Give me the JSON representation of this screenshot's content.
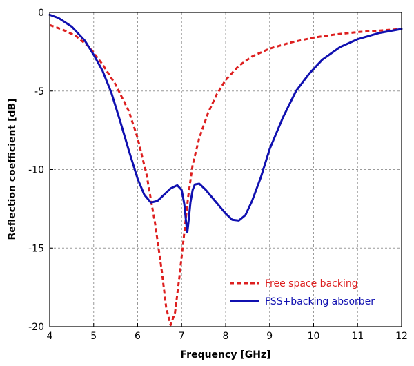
{
  "chart_data": {
    "type": "line",
    "title": "",
    "xlabel": "Frequency [GHz]",
    "ylabel": "Reflection coefficient [dB]",
    "xlim": [
      4,
      12
    ],
    "ylim": [
      -20,
      0
    ],
    "xticks": [
      4,
      5,
      6,
      7,
      8,
      9,
      10,
      11,
      12
    ],
    "yticks": [
      0,
      -5,
      -10,
      -15,
      -20
    ],
    "grid": true,
    "legend_position": "bottom-right",
    "series": [
      {
        "name": "Free space backing",
        "color": "#dd1f1f",
        "style": "dashed",
        "x": [
          4.0,
          4.3,
          4.6,
          4.9,
          5.2,
          5.5,
          5.8,
          6.0,
          6.2,
          6.4,
          6.55,
          6.65,
          6.75,
          6.85,
          6.95,
          7.05,
          7.15,
          7.25,
          7.4,
          7.6,
          7.8,
          8.0,
          8.3,
          8.6,
          9.0,
          9.5,
          10.0,
          10.5,
          11.0,
          11.5,
          12.0
        ],
        "y": [
          -0.8,
          -1.1,
          -1.5,
          -2.2,
          -3.3,
          -4.6,
          -6.3,
          -8.0,
          -10.3,
          -13.5,
          -16.5,
          -18.8,
          -19.9,
          -19.1,
          -16.8,
          -14.3,
          -11.7,
          -9.7,
          -8.0,
          -6.4,
          -5.2,
          -4.3,
          -3.4,
          -2.8,
          -2.3,
          -1.9,
          -1.6,
          -1.4,
          -1.25,
          -1.15,
          -1.05
        ]
      },
      {
        "name": "FSS+backing absorber",
        "color": "#1010b0",
        "style": "solid",
        "x": [
          4.0,
          4.2,
          4.5,
          4.8,
          5.0,
          5.2,
          5.4,
          5.6,
          5.8,
          6.0,
          6.15,
          6.3,
          6.45,
          6.6,
          6.75,
          6.9,
          7.0,
          7.06,
          7.1,
          7.13,
          7.16,
          7.2,
          7.25,
          7.3,
          7.4,
          7.55,
          7.7,
          7.85,
          8.0,
          8.15,
          8.3,
          8.45,
          8.6,
          8.8,
          9.0,
          9.3,
          9.6,
          9.9,
          10.2,
          10.6,
          11.0,
          11.5,
          12.0
        ],
        "y": [
          -0.15,
          -0.35,
          -0.9,
          -1.8,
          -2.7,
          -3.7,
          -5.1,
          -6.9,
          -8.8,
          -10.6,
          -11.6,
          -12.1,
          -12.0,
          -11.6,
          -11.2,
          -11.0,
          -11.3,
          -12.2,
          -13.3,
          -14.0,
          -13.2,
          -12.1,
          -11.3,
          -10.95,
          -10.9,
          -11.3,
          -11.8,
          -12.3,
          -12.8,
          -13.2,
          -13.25,
          -12.9,
          -12.0,
          -10.5,
          -8.7,
          -6.7,
          -5.0,
          -3.9,
          -3.0,
          -2.2,
          -1.7,
          -1.3,
          -1.05
        ]
      }
    ]
  }
}
